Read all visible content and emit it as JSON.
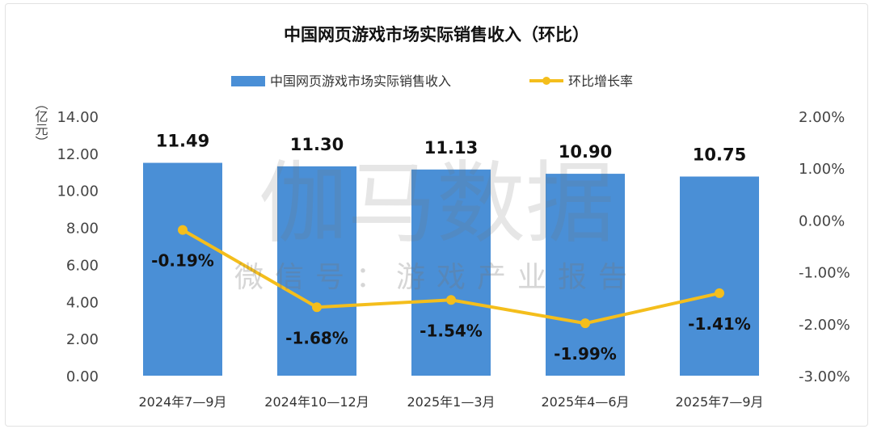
{
  "chart_data": {
    "type": "bar",
    "title": "中国网页游戏市场实际销售收入（环比）",
    "categories": [
      "2024年7—9月",
      "2024年10—12月",
      "2025年1—3月",
      "2025年4—6月",
      "2025年7—9月"
    ],
    "series": [
      {
        "name": "中国网页游戏市场实际销售收入",
        "type": "bar",
        "axis": "left",
        "values": [
          11.49,
          11.3,
          11.13,
          10.9,
          10.75
        ],
        "labels": [
          "11.49",
          "11.30",
          "11.13",
          "10.90",
          "10.75"
        ],
        "color": "#4a8fd6"
      },
      {
        "name": "环比增长率",
        "type": "line",
        "axis": "right",
        "values": [
          -0.19,
          -1.68,
          -1.54,
          -1.99,
          -1.41
        ],
        "labels": [
          "-0.19%",
          "-1.68%",
          "-1.54%",
          "-1.99%",
          "-1.41%"
        ],
        "color": "#f4be1c"
      }
    ],
    "ylabel": "（亿元）",
    "ylim": [
      0,
      14
    ],
    "yticks": [
      "0.00",
      "2.00",
      "4.00",
      "6.00",
      "8.00",
      "10.00",
      "12.00",
      "14.00"
    ],
    "y2lim": [
      -3,
      2
    ],
    "y2ticks": [
      "-3.00%",
      "-2.00%",
      "-1.00%",
      "0.00%",
      "1.00%",
      "2.00%"
    ],
    "legend": "top-center",
    "grid": false
  },
  "watermark": {
    "main": "伽马数据",
    "sub": "微信号：游戏产业报告"
  }
}
